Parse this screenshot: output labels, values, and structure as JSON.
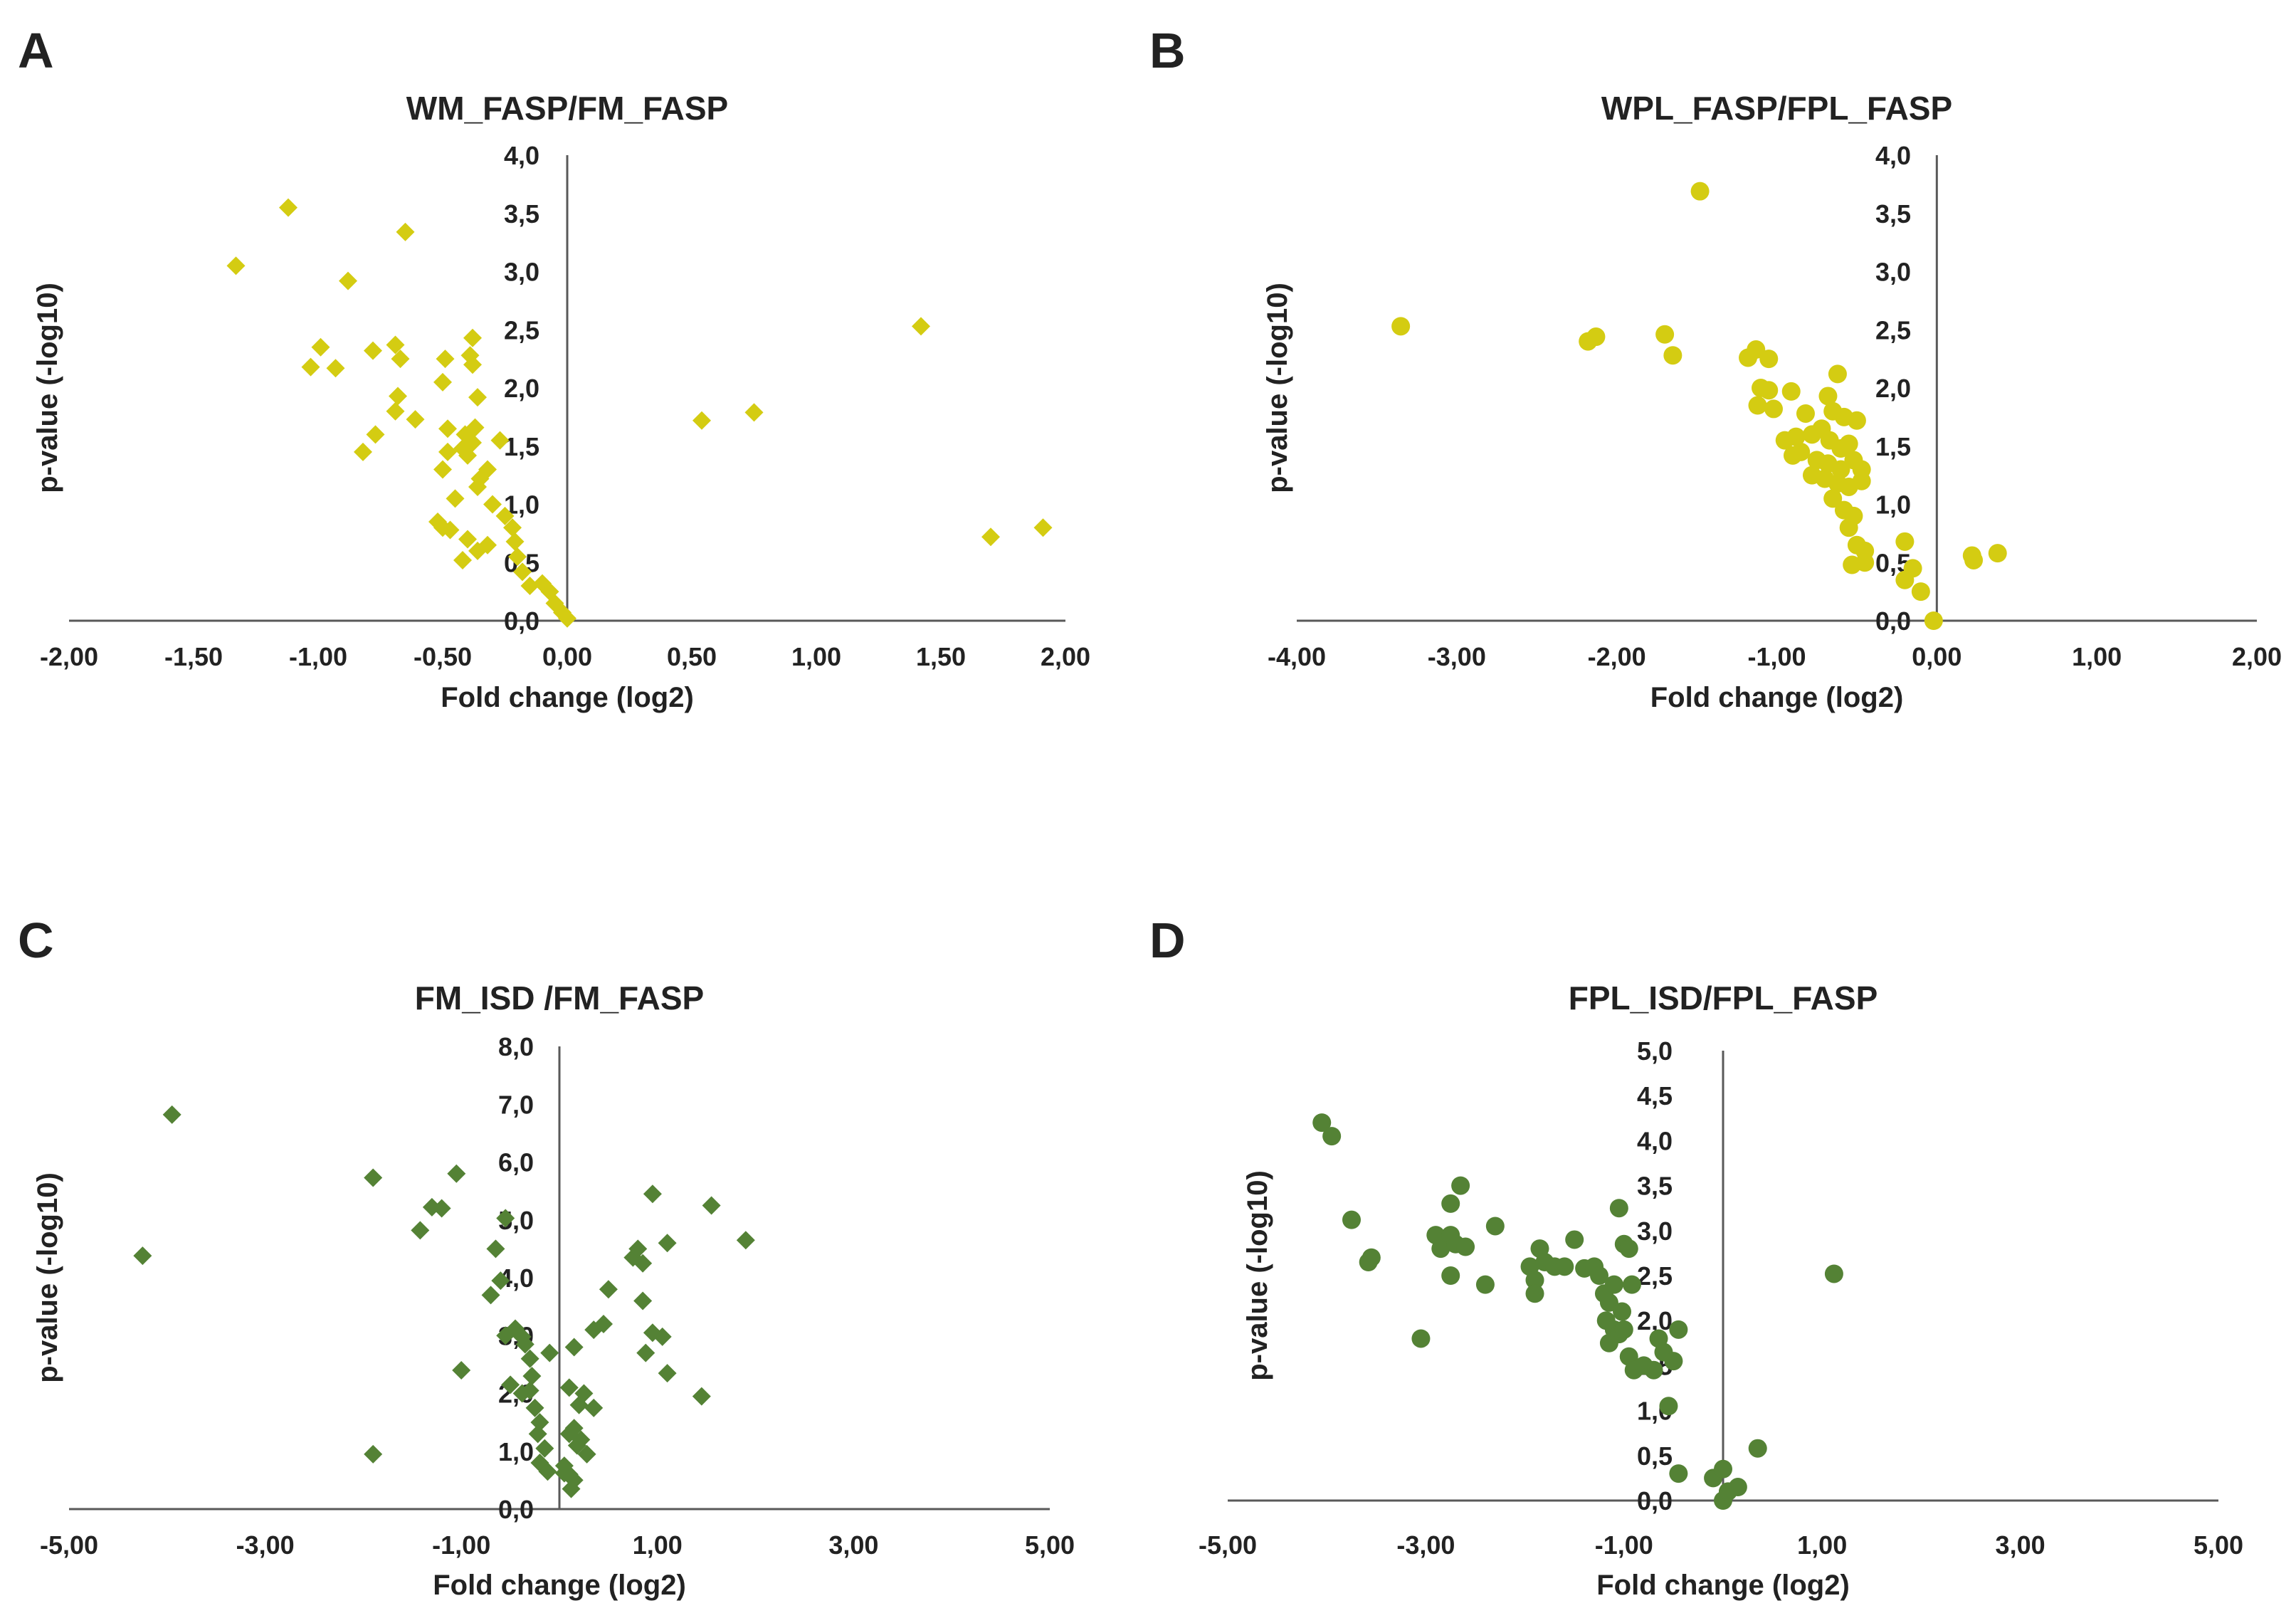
{
  "chart_data": [
    {
      "panel": "A",
      "type": "scatter",
      "title": "WM_FASP/FM_FASP",
      "xlabel": "Fold change (log2)",
      "ylabel": "p-value (-log10)",
      "xlim": [
        -2,
        2
      ],
      "ylim": [
        0,
        4
      ],
      "x_ticks": [
        "-2,00",
        "-1,50",
        "-1,00",
        "-0,50",
        "0,00",
        "0,50",
        "1,00",
        "1,50",
        "2,00"
      ],
      "y_ticks": [
        "0,0",
        "0,5",
        "1,0",
        "1,5",
        "2,0",
        "2,5",
        "3,0",
        "3,5",
        "4,0"
      ],
      "marker": "diamond",
      "color": "#d4cc12",
      "points": [
        [
          -1.12,
          3.55
        ],
        [
          -1.33,
          3.05
        ],
        [
          -0.65,
          3.34
        ],
        [
          -0.88,
          2.92
        ],
        [
          -0.99,
          2.35
        ],
        [
          -1.03,
          2.18
        ],
        [
          -0.93,
          2.17
        ],
        [
          -0.78,
          2.32
        ],
        [
          -0.69,
          2.37
        ],
        [
          -0.67,
          2.25
        ],
        [
          -0.49,
          2.25
        ],
        [
          -0.38,
          2.43
        ],
        [
          -0.39,
          2.28
        ],
        [
          -0.38,
          2.2
        ],
        [
          -0.68,
          1.93
        ],
        [
          -0.5,
          2.05
        ],
        [
          -0.36,
          1.92
        ],
        [
          -0.69,
          1.8
        ],
        [
          -0.61,
          1.73
        ],
        [
          -0.77,
          1.6
        ],
        [
          -0.82,
          1.45
        ],
        [
          -0.48,
          1.65
        ],
        [
          -0.41,
          1.6
        ],
        [
          -0.37,
          1.66
        ],
        [
          -0.38,
          1.53
        ],
        [
          -0.42,
          1.48
        ],
        [
          -0.48,
          1.45
        ],
        [
          -0.5,
          1.3
        ],
        [
          -0.4,
          1.42
        ],
        [
          -0.35,
          1.22
        ],
        [
          -0.32,
          1.3
        ],
        [
          -0.36,
          1.15
        ],
        [
          -0.27,
          1.55
        ],
        [
          -0.45,
          1.05
        ],
        [
          -0.3,
          1.0
        ],
        [
          -0.25,
          0.9
        ],
        [
          -0.22,
          0.8
        ],
        [
          -0.52,
          0.85
        ],
        [
          -0.5,
          0.8
        ],
        [
          -0.47,
          0.78
        ],
        [
          -0.4,
          0.7
        ],
        [
          -0.32,
          0.65
        ],
        [
          -0.36,
          0.6
        ],
        [
          -0.42,
          0.52
        ],
        [
          -0.21,
          0.68
        ],
        [
          -0.2,
          0.55
        ],
        [
          -0.18,
          0.42
        ],
        [
          -0.15,
          0.3
        ],
        [
          -0.1,
          0.32
        ],
        [
          -0.07,
          0.25
        ],
        [
          -0.05,
          0.15
        ],
        [
          -0.02,
          0.07
        ],
        [
          0.0,
          0.02
        ],
        [
          0.54,
          1.72
        ],
        [
          0.75,
          1.79
        ],
        [
          1.42,
          2.53
        ],
        [
          1.7,
          0.72
        ],
        [
          1.91,
          0.8
        ]
      ]
    },
    {
      "panel": "B",
      "type": "scatter",
      "title": "WPL_FASP/FPL_FASP",
      "xlabel": "Fold change (log2)",
      "ylabel": "p-value (-log10)",
      "xlim": [
        -4,
        2
      ],
      "ylim": [
        0,
        4
      ],
      "x_ticks": [
        "-4,00",
        "-3,00",
        "-2,00",
        "-1,00",
        "0,00",
        "1,00",
        "2,00"
      ],
      "y_ticks": [
        "0,0",
        "0,5",
        "1,0",
        "1,5",
        "2,0",
        "2,5",
        "3,0",
        "3,5",
        "4,0"
      ],
      "marker": "circle",
      "color": "#d4cc12",
      "points": [
        [
          -3.35,
          2.53
        ],
        [
          -1.48,
          3.69
        ],
        [
          -2.18,
          2.4
        ],
        [
          -2.13,
          2.44
        ],
        [
          -1.7,
          2.46
        ],
        [
          -1.65,
          2.28
        ],
        [
          -1.13,
          2.33
        ],
        [
          -1.18,
          2.26
        ],
        [
          -1.05,
          2.25
        ],
        [
          -0.62,
          2.12
        ],
        [
          -1.1,
          2.0
        ],
        [
          -1.05,
          1.98
        ],
        [
          -0.91,
          1.97
        ],
        [
          -0.68,
          1.93
        ],
        [
          -1.12,
          1.85
        ],
        [
          -1.02,
          1.82
        ],
        [
          -0.82,
          1.78
        ],
        [
          -0.65,
          1.8
        ],
        [
          -0.58,
          1.75
        ],
        [
          -0.5,
          1.72
        ],
        [
          -0.95,
          1.55
        ],
        [
          -0.88,
          1.58
        ],
        [
          -0.78,
          1.6
        ],
        [
          -0.72,
          1.65
        ],
        [
          -0.67,
          1.55
        ],
        [
          -0.6,
          1.48
        ],
        [
          -0.55,
          1.52
        ],
        [
          -0.9,
          1.42
        ],
        [
          -0.85,
          1.45
        ],
        [
          -0.75,
          1.38
        ],
        [
          -0.68,
          1.35
        ],
        [
          -0.6,
          1.3
        ],
        [
          -0.52,
          1.38
        ],
        [
          -0.47,
          1.3
        ],
        [
          -0.78,
          1.25
        ],
        [
          -0.7,
          1.22
        ],
        [
          -0.62,
          1.18
        ],
        [
          -0.55,
          1.15
        ],
        [
          -0.47,
          1.2
        ],
        [
          -0.65,
          1.05
        ],
        [
          -0.58,
          0.95
        ],
        [
          -0.52,
          0.9
        ],
        [
          -0.55,
          0.8
        ],
        [
          -0.5,
          0.65
        ],
        [
          -0.45,
          0.6
        ],
        [
          -0.53,
          0.48
        ],
        [
          -0.45,
          0.5
        ],
        [
          -0.2,
          0.68
        ],
        [
          -0.15,
          0.45
        ],
        [
          -0.2,
          0.35
        ],
        [
          -0.1,
          0.25
        ],
        [
          -0.02,
          0.0
        ],
        [
          0.22,
          0.56
        ],
        [
          0.23,
          0.52
        ],
        [
          0.38,
          0.58
        ]
      ]
    },
    {
      "panel": "C",
      "type": "scatter",
      "title": "FM_ISD /FM_FASP",
      "xlabel": "Fold change (log2)",
      "ylabel": "p-value (-log10)",
      "xlim": [
        -5,
        5
      ],
      "ylim": [
        0,
        8
      ],
      "x_ticks": [
        "-5,00",
        "-3,00",
        "-1,00",
        "1,00",
        "3,00",
        "5,00"
      ],
      "y_ticks": [
        "0,0",
        "1,0",
        "2,0",
        "3,0",
        "4,0",
        "5,0",
        "6,0",
        "7,0",
        "8,0"
      ],
      "marker": "diamond",
      "color": "#548235",
      "points": [
        [
          -3.95,
          6.82
        ],
        [
          -4.25,
          4.38
        ],
        [
          -1.9,
          5.73
        ],
        [
          -1.05,
          5.8
        ],
        [
          -1.3,
          5.22
        ],
        [
          -1.2,
          5.2
        ],
        [
          -1.42,
          4.82
        ],
        [
          -0.55,
          5.03
        ],
        [
          -0.65,
          4.5
        ],
        [
          -0.7,
          3.7
        ],
        [
          -0.6,
          3.95
        ],
        [
          -0.45,
          3.12
        ],
        [
          -0.55,
          3.0
        ],
        [
          -0.38,
          2.98
        ],
        [
          -0.35,
          2.85
        ],
        [
          -0.3,
          2.6
        ],
        [
          -0.28,
          2.3
        ],
        [
          -0.5,
          2.15
        ],
        [
          -0.38,
          2.0
        ],
        [
          -0.3,
          2.05
        ],
        [
          -0.25,
          1.75
        ],
        [
          -0.2,
          1.5
        ],
        [
          -0.22,
          1.3
        ],
        [
          -0.15,
          1.05
        ],
        [
          -0.2,
          0.8
        ],
        [
          -0.12,
          0.65
        ],
        [
          -1.0,
          2.4
        ],
        [
          -1.9,
          0.95
        ],
        [
          -0.1,
          2.7
        ],
        [
          0.15,
          2.8
        ],
        [
          0.1,
          2.1
        ],
        [
          0.2,
          1.8
        ],
        [
          0.25,
          2.0
        ],
        [
          0.35,
          1.75
        ],
        [
          0.15,
          1.4
        ],
        [
          0.18,
          1.1
        ],
        [
          0.1,
          1.3
        ],
        [
          0.22,
          1.2
        ],
        [
          0.28,
          0.95
        ],
        [
          0.05,
          0.75
        ],
        [
          0.1,
          0.6
        ],
        [
          0.15,
          0.5
        ],
        [
          0.12,
          0.35
        ],
        [
          0.05,
          0.62
        ],
        [
          0.35,
          3.1
        ],
        [
          0.45,
          3.2
        ],
        [
          0.5,
          3.8
        ],
        [
          0.75,
          4.35
        ],
        [
          0.8,
          4.5
        ],
        [
          0.85,
          4.25
        ],
        [
          1.1,
          4.6
        ],
        [
          0.95,
          5.45
        ],
        [
          0.85,
          3.6
        ],
        [
          0.95,
          3.05
        ],
        [
          1.05,
          2.98
        ],
        [
          0.88,
          2.7
        ],
        [
          1.1,
          2.35
        ],
        [
          1.55,
          5.25
        ],
        [
          1.9,
          4.65
        ],
        [
          1.45,
          1.95
        ]
      ]
    },
    {
      "panel": "D",
      "type": "scatter",
      "title": "FPL_ISD/FPL_FASP",
      "xlabel": "Fold change (log2)",
      "ylabel": "p-value (-log10)",
      "xlim": [
        -5,
        5
      ],
      "ylim": [
        0,
        5
      ],
      "x_ticks": [
        "-5,00",
        "-3,00",
        "-1,00",
        "1,00",
        "3,00",
        "5,00"
      ],
      "y_ticks": [
        "0,0",
        "0,5",
        "1,0",
        "1,5",
        "2,0",
        "2,5",
        "3,0",
        "3,5",
        "4,0",
        "4,5",
        "5,0"
      ],
      "marker": "circle",
      "color": "#548235",
      "points": [
        [
          -4.05,
          4.2
        ],
        [
          -3.95,
          4.05
        ],
        [
          -3.75,
          3.12
        ],
        [
          -3.55,
          2.7
        ],
        [
          -3.58,
          2.65
        ],
        [
          -3.05,
          1.8
        ],
        [
          -2.9,
          2.95
        ],
        [
          -2.85,
          2.8
        ],
        [
          -2.75,
          2.95
        ],
        [
          -2.7,
          2.85
        ],
        [
          -2.6,
          2.82
        ],
        [
          -2.75,
          3.3
        ],
        [
          -2.65,
          3.5
        ],
        [
          -2.75,
          2.5
        ],
        [
          -2.4,
          2.4
        ],
        [
          -2.3,
          3.05
        ],
        [
          -1.95,
          2.6
        ],
        [
          -1.9,
          2.45
        ],
        [
          -1.9,
          2.3
        ],
        [
          -1.85,
          2.8
        ],
        [
          -1.8,
          2.65
        ],
        [
          -1.7,
          2.6
        ],
        [
          -1.6,
          2.6
        ],
        [
          -1.5,
          2.9
        ],
        [
          -1.4,
          2.58
        ],
        [
          -1.3,
          2.6
        ],
        [
          -1.25,
          2.5
        ],
        [
          -1.2,
          2.3
        ],
        [
          -1.15,
          2.2
        ],
        [
          -1.1,
          2.4
        ],
        [
          -1.05,
          3.25
        ],
        [
          -1.0,
          2.85
        ],
        [
          -0.95,
          2.8
        ],
        [
          -0.92,
          2.4
        ],
        [
          -1.18,
          2.0
        ],
        [
          -1.1,
          1.9
        ],
        [
          -1.02,
          2.1
        ],
        [
          -1.15,
          1.75
        ],
        [
          -1.05,
          1.85
        ],
        [
          -1.0,
          1.9
        ],
        [
          -0.95,
          1.6
        ],
        [
          -0.9,
          1.45
        ],
        [
          -0.8,
          1.5
        ],
        [
          -0.7,
          1.45
        ],
        [
          -0.65,
          1.8
        ],
        [
          -0.6,
          1.65
        ],
        [
          -0.5,
          1.55
        ],
        [
          -0.45,
          1.9
        ],
        [
          -0.55,
          1.05
        ],
        [
          -0.45,
          0.3
        ],
        [
          -0.1,
          0.25
        ],
        [
          0.0,
          0.35
        ],
        [
          0.0,
          0.0
        ],
        [
          0.05,
          0.1
        ],
        [
          0.15,
          0.15
        ],
        [
          0.35,
          0.58
        ],
        [
          1.12,
          2.52
        ]
      ]
    }
  ]
}
